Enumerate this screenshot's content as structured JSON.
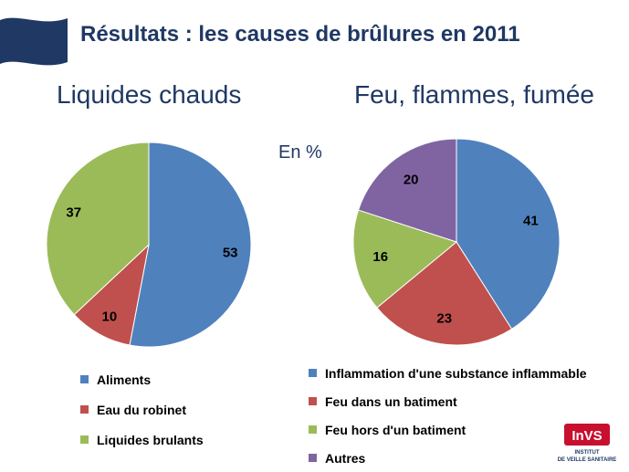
{
  "title": "Résultats : les causes de brûlures en 2011",
  "unit_label": "En %",
  "logo": {
    "brand_text": "InVS",
    "caption_line1": "INSTITUT",
    "caption_line2": "DE VEILLE SANITAIRE",
    "brand_color": "#c8102e"
  },
  "chart_data": [
    {
      "type": "pie",
      "title": "Liquides chauds",
      "categories": [
        "Aliments",
        "Eau du robinet",
        "Liquides brulants"
      ],
      "values": [
        53,
        10,
        37
      ],
      "colors": [
        "#4f81bd",
        "#c0504d",
        "#9bbb59"
      ],
      "legend_position": "bottom"
    },
    {
      "type": "pie",
      "title": "Feu, flammes, fumée",
      "categories": [
        "Inflammation d'une substance inflammable",
        "Feu dans un batiment",
        "Feu hors d'un batiment",
        "Autres"
      ],
      "values": [
        41,
        23,
        16,
        20
      ],
      "colors": [
        "#4f81bd",
        "#c0504d",
        "#9bbb59",
        "#8064a2"
      ],
      "legend_position": "bottom"
    }
  ]
}
